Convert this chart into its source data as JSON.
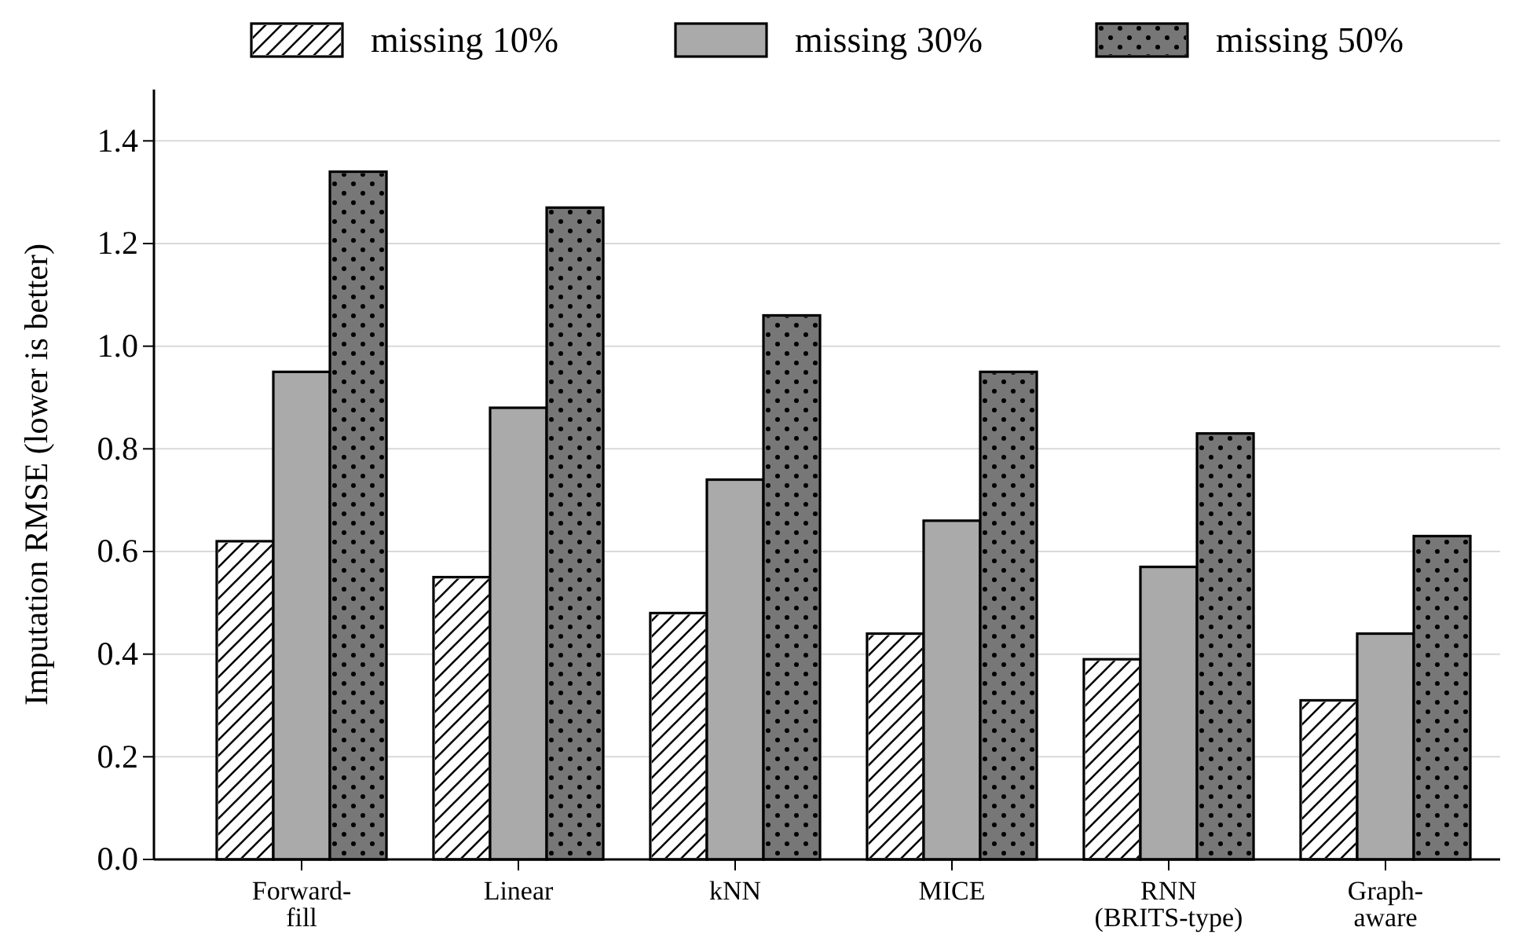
{
  "chart_data": {
    "type": "bar",
    "ylabel": "Imputation RMSE  (lower is better)",
    "categories": [
      "Forward-\nfill",
      "Linear",
      "kNN",
      "MICE",
      "RNN\n(BRITS-type)",
      "Graph-\naware"
    ],
    "series": [
      {
        "name": "missing 10%",
        "color": "#ffffff",
        "values": [
          0.62,
          0.55,
          0.48,
          0.44,
          0.39,
          0.31
        ]
      },
      {
        "name": "missing 30%",
        "color": "#aaaaaa",
        "values": [
          0.95,
          0.88,
          0.74,
          0.66,
          0.57,
          0.44
        ]
      },
      {
        "name": "missing 50%",
        "color": "#777777",
        "values": [
          1.34,
          1.27,
          1.06,
          0.95,
          0.83,
          0.63
        ]
      }
    ],
    "ylim": [
      0,
      1.5
    ],
    "yticks": [
      {
        "value": 0.0,
        "label": "0.0"
      },
      0.2,
      0.4,
      0.6,
      0.8,
      {
        "value": 1.0,
        "label": "1.0"
      },
      1.2,
      1.4
    ],
    "grid": "y",
    "legend": "top"
  }
}
